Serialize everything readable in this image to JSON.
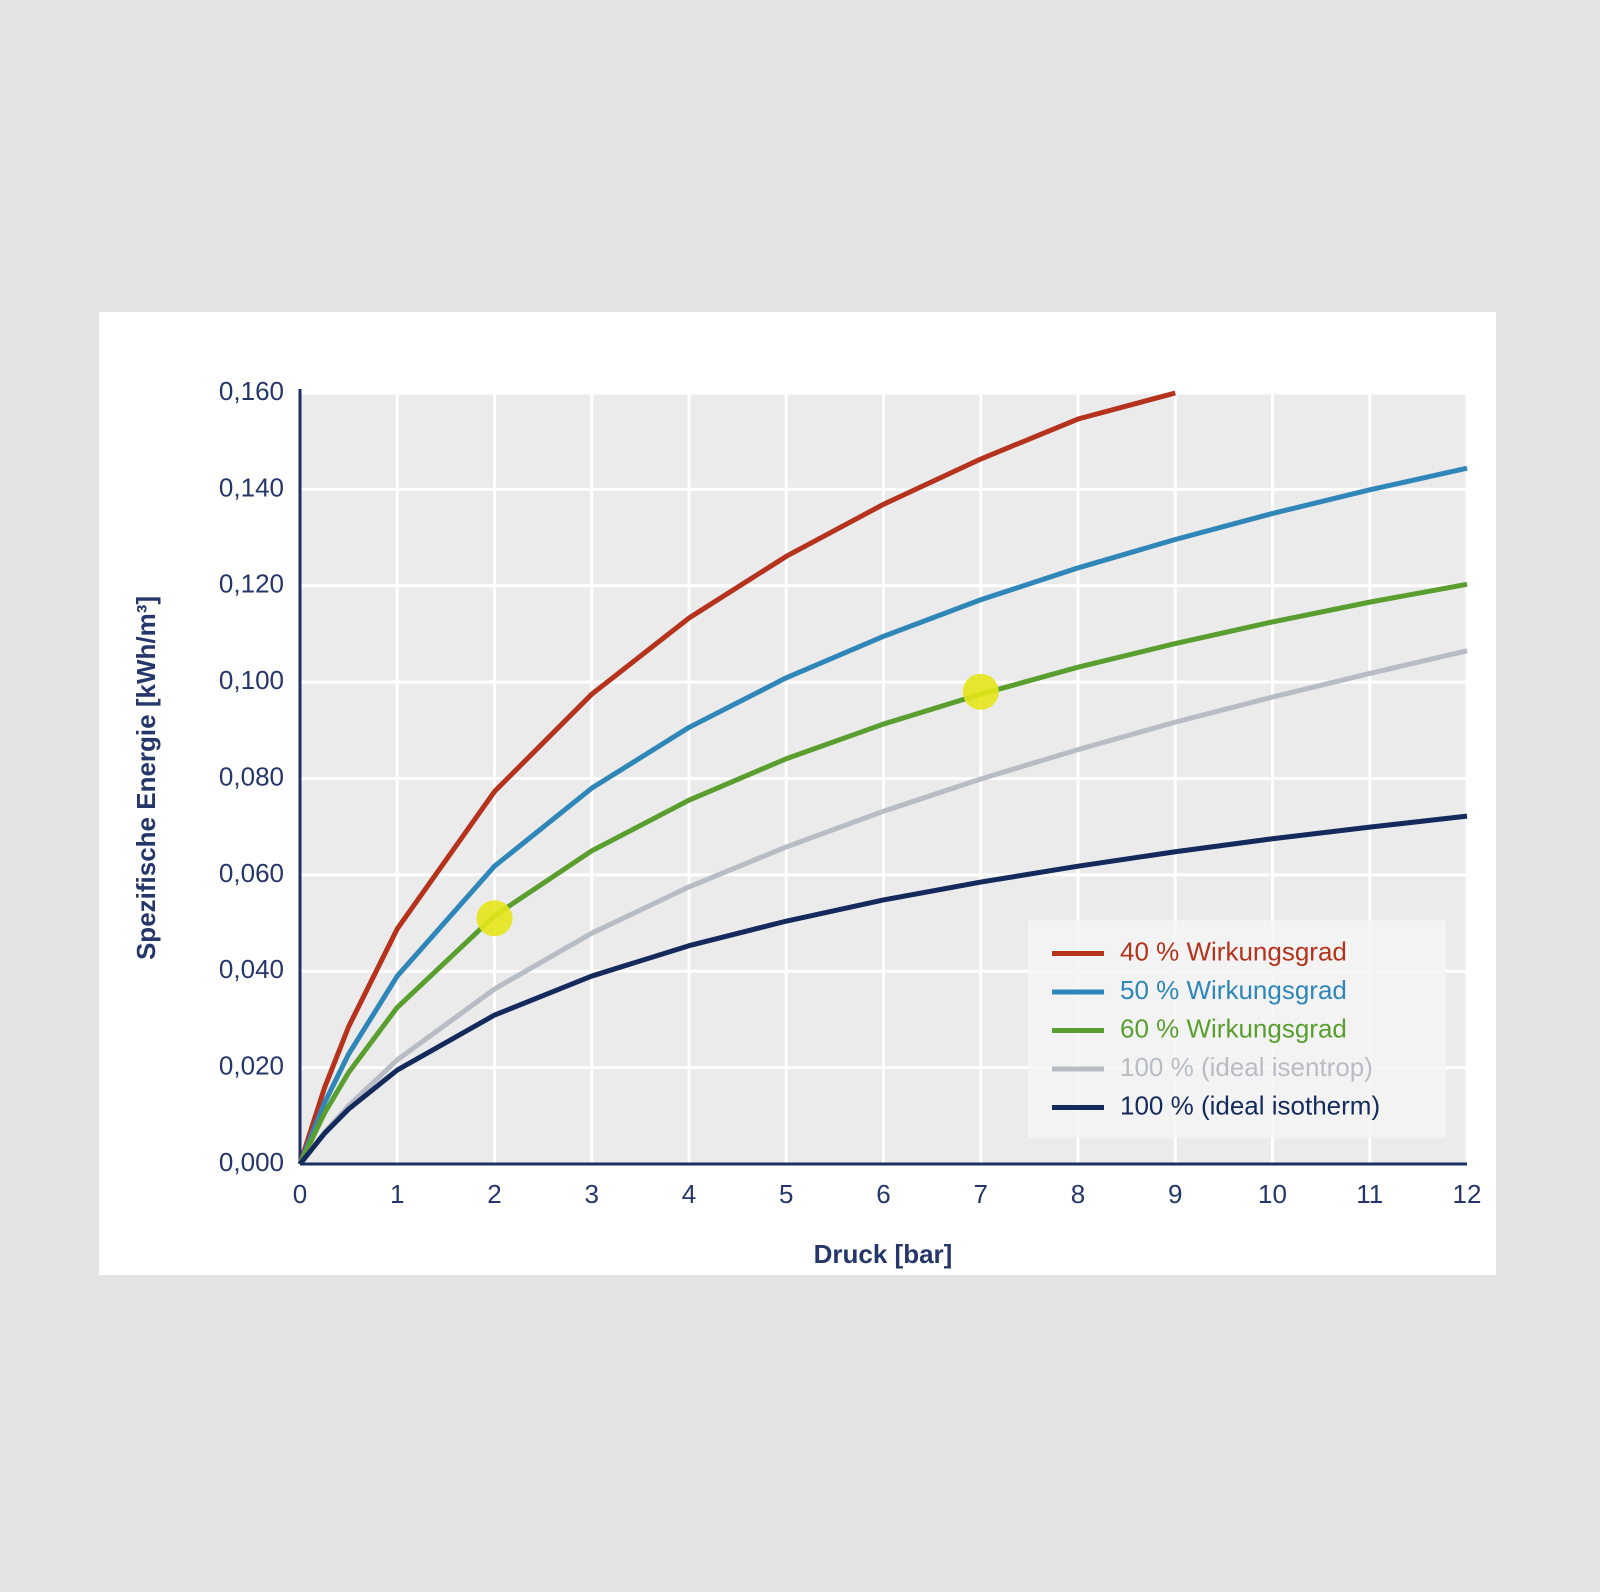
{
  "chart_data": {
    "type": "line",
    "xlabel": "Druck [bar]",
    "ylabel": "Spezifische Energie [kWh/m³]",
    "x": [
      0,
      0.25,
      0.5,
      1,
      2,
      3,
      4,
      5,
      6,
      7,
      8,
      9,
      10,
      11,
      12
    ],
    "series": [
      {
        "name": "40 % Wirkungsgrad",
        "color": "#b5321c",
        "values": [
          0,
          0.0157,
          0.0285,
          0.0488,
          0.0773,
          0.0975,
          0.1133,
          0.1261,
          0.1369,
          0.1463,
          0.1546,
          0.16,
          null,
          null,
          null
        ]
      },
      {
        "name": "50 % Wirkungsgrad",
        "color": "#2f86b8",
        "values": [
          0,
          0.0126,
          0.0228,
          0.039,
          0.0618,
          0.078,
          0.0906,
          0.1009,
          0.1095,
          0.1171,
          0.1237,
          0.1296,
          0.135,
          0.1399,
          0.1444
        ]
      },
      {
        "name": "60 % Wirkungsgrad",
        "color": "#5a9e2f",
        "values": [
          0,
          0.0105,
          0.019,
          0.0325,
          0.0515,
          0.065,
          0.0755,
          0.0841,
          0.0913,
          0.0975,
          0.1031,
          0.108,
          0.1125,
          0.1166,
          0.1203
        ]
      },
      {
        "name": "100 % (ideal isentrop)",
        "color": "#b8bcc4",
        "values": [
          0,
          0.0065,
          0.0121,
          0.0216,
          0.0363,
          0.0479,
          0.0575,
          0.0658,
          0.0732,
          0.0799,
          0.086,
          0.0917,
          0.0969,
          0.1018,
          0.1065
        ]
      },
      {
        "name": "100 % (ideal isotherm)",
        "color": "#142a5c",
        "values": [
          0,
          0.0063,
          0.0114,
          0.0195,
          0.0309,
          0.039,
          0.0453,
          0.0504,
          0.0548,
          0.0585,
          0.0618,
          0.0648,
          0.0675,
          0.0699,
          0.0722
        ]
      }
    ],
    "points": {
      "color": "#e6e619",
      "x": [
        2,
        7
      ],
      "values": [
        0.051,
        0.098
      ]
    },
    "xlim": [
      0,
      12
    ],
    "xticks": [
      0,
      1,
      2,
      3,
      4,
      5,
      6,
      7,
      8,
      9,
      10,
      11,
      12
    ],
    "ylim": [
      0,
      0.16
    ],
    "yticks": [
      {
        "value": 0,
        "label": "0,000"
      },
      {
        "value": 0.02,
        "label": "0,020"
      },
      {
        "value": 0.04,
        "label": "0,040"
      },
      {
        "value": 0.06,
        "label": "0,060"
      },
      {
        "value": 0.08,
        "label": "0,080"
      },
      {
        "value": 0.1,
        "label": "0,100"
      },
      {
        "value": 0.12,
        "label": "0,120"
      },
      {
        "value": 0.14,
        "label": "0,140"
      },
      {
        "value": 0.16,
        "label": "0,160"
      }
    ],
    "grid": true,
    "legend": "lower right"
  }
}
